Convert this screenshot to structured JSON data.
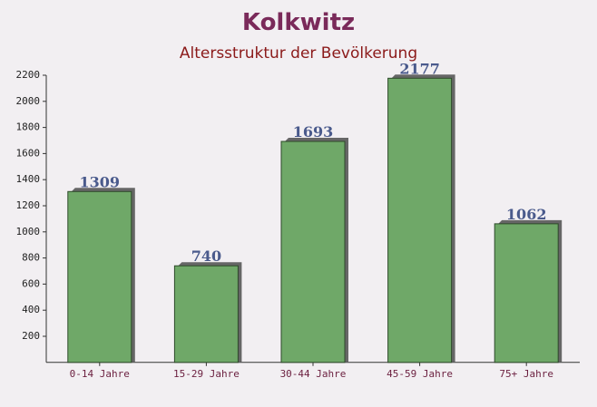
{
  "chart_data": {
    "type": "bar",
    "title": "Kolkwitz",
    "subtitle": "Altersstruktur der Bevölkerung",
    "categories": [
      "0-14 Jahre",
      "15-29 Jahre",
      "30-44 Jahre",
      "45-59 Jahre",
      "75+ Jahre"
    ],
    "values": [
      1309,
      740,
      1693,
      2177,
      1062
    ],
    "color": "#6fa868",
    "ylim": [
      0,
      2200
    ],
    "yticks": [
      200,
      400,
      600,
      800,
      1000,
      1200,
      1400,
      1600,
      1800,
      2000,
      2200
    ]
  }
}
